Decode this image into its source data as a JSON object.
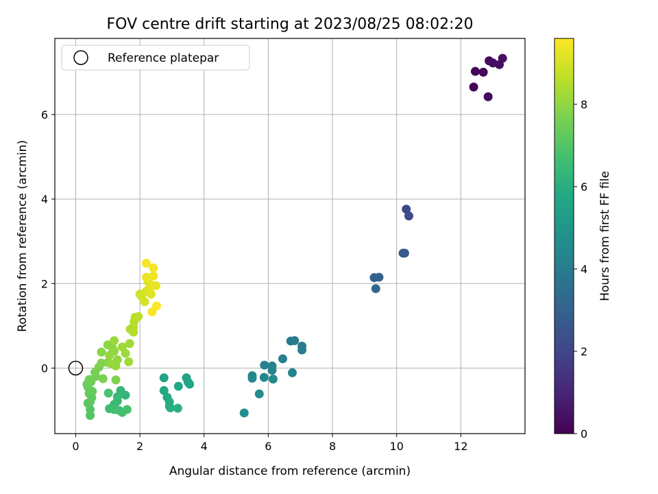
{
  "chart_data": {
    "type": "scatter",
    "title": "FOV centre drift starting at 2023/08/25 08:02:20",
    "xlabel": "Angular distance from reference (arcmin)",
    "ylabel": "Rotation from reference (arcmin)",
    "xlim": [
      -0.65,
      14
    ],
    "ylim": [
      -1.55,
      7.8
    ],
    "xticks": [
      0,
      2,
      4,
      6,
      8,
      10,
      12
    ],
    "yticks": [
      0,
      2,
      4,
      6
    ],
    "grid": true,
    "legend": {
      "placement": "top-left",
      "entries": [
        "Reference platepar"
      ]
    },
    "reference_point": {
      "x": 0,
      "y": 0
    },
    "colorbar": {
      "label": "Hours from first FF file",
      "range": [
        0,
        9.6
      ],
      "ticks": [
        0,
        2,
        4,
        6,
        8
      ],
      "colormap": "viridis"
    },
    "points": [
      {
        "x": 12.4,
        "y": 6.65,
        "c": 0.1
      },
      {
        "x": 12.45,
        "y": 7.02,
        "c": 0.15
      },
      {
        "x": 12.7,
        "y": 7.0,
        "c": 0.2
      },
      {
        "x": 12.85,
        "y": 6.42,
        "c": 0.25
      },
      {
        "x": 12.88,
        "y": 7.27,
        "c": 0.3
      },
      {
        "x": 13.0,
        "y": 7.22,
        "c": 0.35
      },
      {
        "x": 13.2,
        "y": 7.18,
        "c": 0.4
      },
      {
        "x": 13.3,
        "y": 7.33,
        "c": 0.45
      },
      {
        "x": 10.3,
        "y": 3.76,
        "c": 2.1
      },
      {
        "x": 10.38,
        "y": 3.6,
        "c": 2.2
      },
      {
        "x": 10.2,
        "y": 2.72,
        "c": 2.6
      },
      {
        "x": 10.25,
        "y": 2.72,
        "c": 2.65
      },
      {
        "x": 9.3,
        "y": 2.14,
        "c": 3.0
      },
      {
        "x": 9.45,
        "y": 2.15,
        "c": 3.05
      },
      {
        "x": 9.35,
        "y": 1.88,
        "c": 3.1
      },
      {
        "x": 6.7,
        "y": 0.64,
        "c": 3.9
      },
      {
        "x": 6.82,
        "y": 0.65,
        "c": 3.95
      },
      {
        "x": 7.05,
        "y": 0.52,
        "c": 4.0
      },
      {
        "x": 7.05,
        "y": 0.43,
        "c": 4.05
      },
      {
        "x": 6.45,
        "y": 0.22,
        "c": 4.1
      },
      {
        "x": 5.88,
        "y": 0.07,
        "c": 4.2
      },
      {
        "x": 6.12,
        "y": 0.05,
        "c": 4.25
      },
      {
        "x": 6.12,
        "y": -0.05,
        "c": 4.3
      },
      {
        "x": 6.75,
        "y": -0.11,
        "c": 4.35
      },
      {
        "x": 5.5,
        "y": -0.18,
        "c": 4.4
      },
      {
        "x": 5.5,
        "y": -0.24,
        "c": 4.45
      },
      {
        "x": 5.87,
        "y": -0.22,
        "c": 4.5
      },
      {
        "x": 6.15,
        "y": -0.26,
        "c": 4.55
      },
      {
        "x": 5.72,
        "y": -0.61,
        "c": 4.6
      },
      {
        "x": 5.25,
        "y": -1.06,
        "c": 4.7
      },
      {
        "x": 2.75,
        "y": -0.23,
        "c": 5.5
      },
      {
        "x": 3.45,
        "y": -0.23,
        "c": 5.55
      },
      {
        "x": 3.5,
        "y": -0.33,
        "c": 5.6
      },
      {
        "x": 3.55,
        "y": -0.38,
        "c": 5.65
      },
      {
        "x": 3.2,
        "y": -0.43,
        "c": 5.7
      },
      {
        "x": 2.75,
        "y": -0.53,
        "c": 5.75
      },
      {
        "x": 2.85,
        "y": -0.69,
        "c": 5.8
      },
      {
        "x": 2.92,
        "y": -0.8,
        "c": 5.85
      },
      {
        "x": 2.92,
        "y": -0.9,
        "c": 5.9
      },
      {
        "x": 2.95,
        "y": -0.94,
        "c": 5.95
      },
      {
        "x": 3.18,
        "y": -0.95,
        "c": 6.0
      },
      {
        "x": 1.55,
        "y": -0.64,
        "c": 6.3
      },
      {
        "x": 1.4,
        "y": -0.53,
        "c": 6.35
      },
      {
        "x": 1.3,
        "y": -0.68,
        "c": 6.4
      },
      {
        "x": 1.3,
        "y": -0.78,
        "c": 6.45
      },
      {
        "x": 1.2,
        "y": -0.86,
        "c": 6.5
      },
      {
        "x": 1.05,
        "y": -0.96,
        "c": 6.55
      },
      {
        "x": 1.2,
        "y": -0.98,
        "c": 6.6
      },
      {
        "x": 1.35,
        "y": -1.0,
        "c": 6.65
      },
      {
        "x": 1.45,
        "y": -1.05,
        "c": 6.7
      },
      {
        "x": 1.6,
        "y": -0.98,
        "c": 6.75
      },
      {
        "x": 1.02,
        "y": -0.59,
        "c": 6.8
      },
      {
        "x": 0.45,
        "y": -1.12,
        "c": 7.0
      },
      {
        "x": 0.45,
        "y": -0.98,
        "c": 7.05
      },
      {
        "x": 0.38,
        "y": -0.83,
        "c": 7.1
      },
      {
        "x": 0.45,
        "y": -0.8,
        "c": 7.15
      },
      {
        "x": 0.5,
        "y": -0.7,
        "c": 7.2
      },
      {
        "x": 0.42,
        "y": -0.6,
        "c": 7.25
      },
      {
        "x": 0.52,
        "y": -0.55,
        "c": 7.3
      },
      {
        "x": 0.38,
        "y": -0.45,
        "c": 7.35
      },
      {
        "x": 0.35,
        "y": -0.38,
        "c": 7.4
      },
      {
        "x": 0.48,
        "y": -0.32,
        "c": 7.45
      },
      {
        "x": 0.42,
        "y": -0.27,
        "c": 7.5
      },
      {
        "x": 0.62,
        "y": -0.2,
        "c": 7.55
      },
      {
        "x": 0.6,
        "y": -0.1,
        "c": 7.6
      },
      {
        "x": 0.72,
        "y": 0.02,
        "c": 7.65
      },
      {
        "x": 0.85,
        "y": -0.25,
        "c": 7.7
      },
      {
        "x": 1.25,
        "y": -0.28,
        "c": 7.75
      },
      {
        "x": 0.8,
        "y": 0.12,
        "c": 7.8
      },
      {
        "x": 1.0,
        "y": 0.13,
        "c": 7.85
      },
      {
        "x": 0.8,
        "y": 0.38,
        "c": 7.9
      },
      {
        "x": 1.0,
        "y": 0.55,
        "c": 7.95
      },
      {
        "x": 1.15,
        "y": 0.47,
        "c": 8.0
      },
      {
        "x": 1.2,
        "y": 0.4,
        "c": 8.0
      },
      {
        "x": 1.05,
        "y": 0.3,
        "c": 8.05
      },
      {
        "x": 1.3,
        "y": 0.2,
        "c": 8.05
      },
      {
        "x": 1.12,
        "y": 0.1,
        "c": 8.1
      },
      {
        "x": 1.25,
        "y": 0.05,
        "c": 8.1
      },
      {
        "x": 1.2,
        "y": 0.65,
        "c": 8.15
      },
      {
        "x": 1.45,
        "y": 0.5,
        "c": 8.2
      },
      {
        "x": 1.55,
        "y": 0.35,
        "c": 8.2
      },
      {
        "x": 1.68,
        "y": 0.58,
        "c": 8.25
      },
      {
        "x": 1.65,
        "y": 0.15,
        "c": 8.25
      },
      {
        "x": 1.7,
        "y": 0.92,
        "c": 8.4
      },
      {
        "x": 1.8,
        "y": 0.97,
        "c": 8.45
      },
      {
        "x": 1.8,
        "y": 0.85,
        "c": 8.5
      },
      {
        "x": 1.82,
        "y": 1.1,
        "c": 8.55
      },
      {
        "x": 1.85,
        "y": 1.2,
        "c": 8.6
      },
      {
        "x": 1.95,
        "y": 1.22,
        "c": 8.65
      },
      {
        "x": 2.0,
        "y": 1.75,
        "c": 8.9
      },
      {
        "x": 2.05,
        "y": 1.7,
        "c": 8.95
      },
      {
        "x": 2.15,
        "y": 1.57,
        "c": 9.0
      },
      {
        "x": 2.2,
        "y": 1.82,
        "c": 9.05
      },
      {
        "x": 2.3,
        "y": 1.9,
        "c": 9.1
      },
      {
        "x": 2.25,
        "y": 2.05,
        "c": 9.15
      },
      {
        "x": 2.35,
        "y": 1.75,
        "c": 9.2
      },
      {
        "x": 2.4,
        "y": 1.95,
        "c": 9.25
      },
      {
        "x": 2.5,
        "y": 1.95,
        "c": 9.3
      },
      {
        "x": 2.2,
        "y": 2.15,
        "c": 9.35
      },
      {
        "x": 2.42,
        "y": 2.18,
        "c": 9.4
      },
      {
        "x": 2.42,
        "y": 2.37,
        "c": 9.45
      },
      {
        "x": 2.2,
        "y": 2.48,
        "c": 9.5
      },
      {
        "x": 2.38,
        "y": 1.33,
        "c": 9.5
      },
      {
        "x": 2.52,
        "y": 1.47,
        "c": 9.55
      }
    ]
  }
}
